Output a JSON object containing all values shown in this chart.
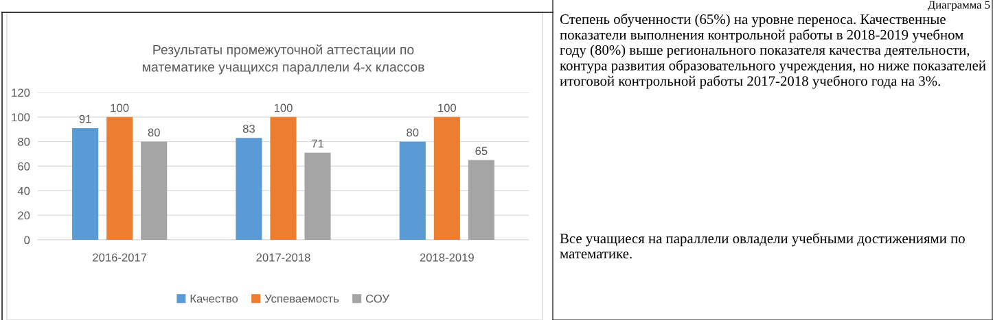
{
  "chart_data": [
    {
      "type": "bar",
      "title": "Результаты промежуточной аттестации по\nматематике учащихся параллели 4-х классов",
      "categories": [
        "2016-2017",
        "2017-2018",
        "2018-2019"
      ],
      "series": [
        {
          "name": "Качество",
          "color": "#5b9bd5",
          "values": [
            91,
            83,
            80
          ]
        },
        {
          "name": "Успеваемость",
          "color": "#ed7d31",
          "values": [
            100,
            100,
            100
          ]
        },
        {
          "name": "СОУ",
          "color": "#a5a5a5",
          "values": [
            80,
            71,
            65
          ]
        }
      ],
      "ylim": [
        0,
        120
      ],
      "yticks": [
        0,
        20,
        40,
        60,
        80,
        100,
        120
      ],
      "grid": "y",
      "legend": "bottom",
      "data_labels": true
    },
    {
      "type": "other",
      "annotations": [
        "Диаграмма 5",
        "Степень обученности (65%) на уровне переноса. Качественные показатели выполнения контрольной работы в 2018-2019 учебном году (80%) выше регионального показателя качества деятельности, контура развития образовательного учреждения, но ниже показателей итоговой контрольной работы 2017-2018 учебного года на 3%.",
        "Все учащиеся на параллели овладели учебными достижениями по математике."
      ]
    }
  ]
}
